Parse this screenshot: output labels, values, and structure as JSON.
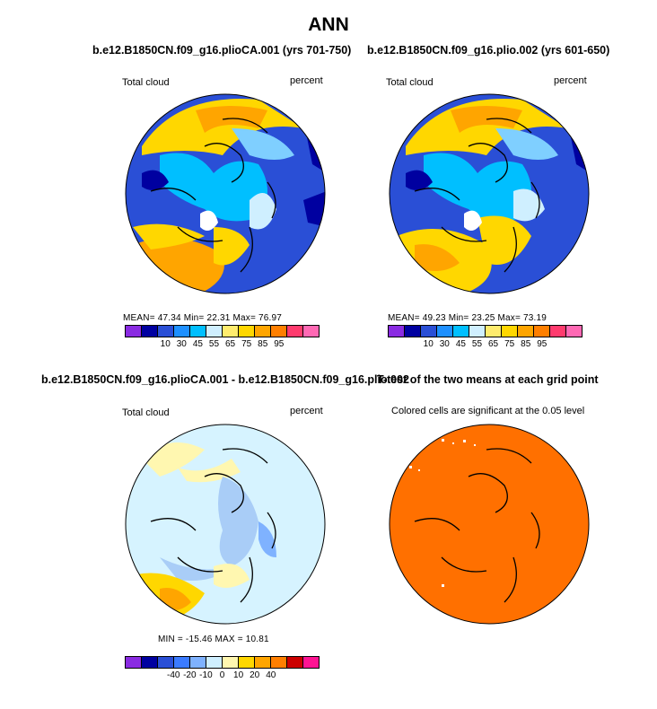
{
  "page_title": "ANN",
  "colorbar_colors": {
    "top": [
      "#8a2be2",
      "#0000a0",
      "#2a4fd6",
      "#1e90ff",
      "#00bfff",
      "#cfefff",
      "#ffec6e",
      "#ffd700",
      "#ffa500",
      "#ff7f00",
      "#ff3b6e",
      "#ff69b4"
    ],
    "diff": [
      "#8a2be2",
      "#0000a0",
      "#2a4fd6",
      "#3b7bff",
      "#7fb2ff",
      "#cfefff",
      "#fff7b0",
      "#ffd700",
      "#ffa500",
      "#ff7f00",
      "#cc0000",
      "#ff1493"
    ]
  },
  "chart_data": [
    {
      "type": "heatmap",
      "projection": "north-polar-stereographic",
      "title": "b.e12.B1850CN.f09_g16.plioCA.001 (yrs 701-750)",
      "left_label": "Total cloud",
      "units": "percent",
      "stats": {
        "mean": 47.34,
        "min": 22.31,
        "max": 76.97
      },
      "stats_text": "MEAN=   47.34   Min=   22.31   Max=   76.97",
      "colorbar_ticks": [
        "10",
        "30",
        "45",
        "55",
        "65",
        "75",
        "85",
        "95"
      ]
    },
    {
      "type": "heatmap",
      "projection": "north-polar-stereographic",
      "title": "b.e12.B1850CN.f09_g16.plio.002 (yrs 601-650)",
      "left_label": "Total cloud",
      "units": "percent",
      "stats": {
        "mean": 49.23,
        "min": 23.25,
        "max": 73.19
      },
      "stats_text": "MEAN=   49.23   Min=   23.25   Max=   73.19",
      "colorbar_ticks": [
        "10",
        "30",
        "45",
        "55",
        "65",
        "75",
        "85",
        "95"
      ]
    },
    {
      "type": "heatmap",
      "projection": "north-polar-stereographic",
      "title": "b.e12.B1850CN.f09_g16.plioCA.001 - b.e12.B1850CN.f09_g16.plio.002",
      "left_label": "Total cloud",
      "units": "percent",
      "stats": {
        "min": -15.46,
        "max": 10.81
      },
      "stats_text": "MIN =  -15.46  MAX =   10.81",
      "colorbar_ticks": [
        "-40",
        "-20",
        "-10",
        "0",
        "10",
        "20",
        "40"
      ]
    },
    {
      "type": "heatmap",
      "projection": "north-polar-stereographic",
      "title": "T-test of the two means at each grid point",
      "subtitle": "Colored cells are significant at the 0.05 level"
    }
  ]
}
